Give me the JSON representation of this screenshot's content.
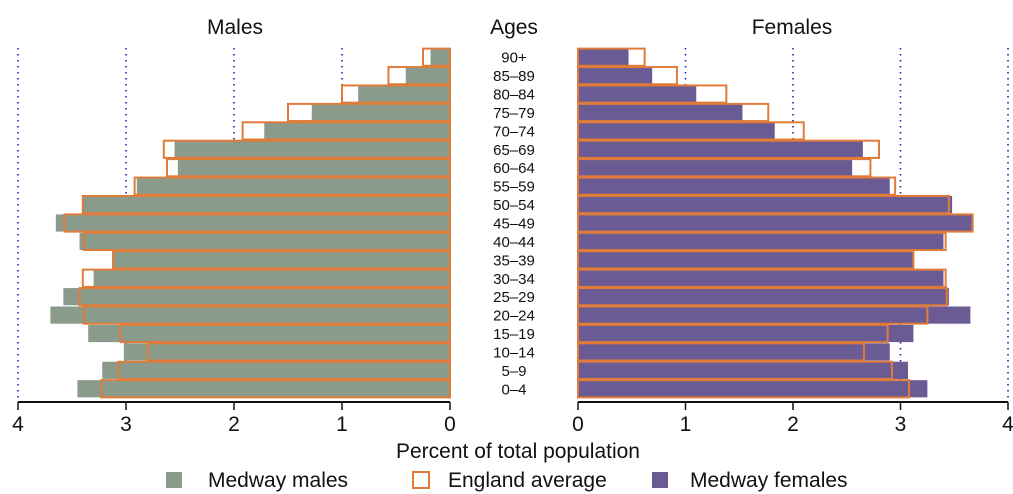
{
  "chart_data": {
    "type": "bar",
    "subtype": "population-pyramid",
    "titles": {
      "left": "Males",
      "center": "Ages",
      "right": "Females"
    },
    "xlabel": "Percent of total population",
    "xlim": [
      0,
      4
    ],
    "xticks": [
      "0",
      "1",
      "2",
      "3",
      "4"
    ],
    "grid": "dotted-vertical",
    "legend_position": "bottom",
    "categories": [
      "90+",
      "85–89",
      "80–84",
      "75–79",
      "70–74",
      "65–69",
      "60–64",
      "55–59",
      "50–54",
      "45–49",
      "40–44",
      "35–39",
      "30–34",
      "25–29",
      "20–24",
      "15–19",
      "10–14",
      "5–9",
      "0–4"
    ],
    "series": [
      {
        "name": "Medway males",
        "kind": "bar-left",
        "color": "#8a9b8c",
        "values": [
          0.18,
          0.41,
          0.85,
          1.28,
          1.72,
          2.55,
          2.52,
          2.9,
          3.4,
          3.65,
          3.43,
          3.12,
          3.3,
          3.58,
          3.7,
          3.35,
          3.02,
          3.22,
          3.45
        ]
      },
      {
        "name": "England average",
        "kind": "outline",
        "color": "#e07b39",
        "values_male": [
          0.25,
          0.57,
          1.0,
          1.5,
          1.92,
          2.65,
          2.62,
          2.92,
          3.4,
          3.57,
          3.39,
          3.12,
          3.4,
          3.43,
          3.39,
          3.05,
          2.8,
          3.07,
          3.23
        ],
        "values_female": [
          0.62,
          0.92,
          1.38,
          1.77,
          2.1,
          2.8,
          2.72,
          2.95,
          3.45,
          3.67,
          3.42,
          3.12,
          3.42,
          3.43,
          3.25,
          2.88,
          2.66,
          2.92,
          3.08
        ]
      },
      {
        "name": "Medway females",
        "kind": "bar-right",
        "color": "#6b5b95",
        "values": [
          0.47,
          0.69,
          1.1,
          1.53,
          1.83,
          2.65,
          2.55,
          2.9,
          3.48,
          3.68,
          3.4,
          3.12,
          3.4,
          3.45,
          3.65,
          3.12,
          2.9,
          3.07,
          3.25
        ]
      }
    ]
  }
}
